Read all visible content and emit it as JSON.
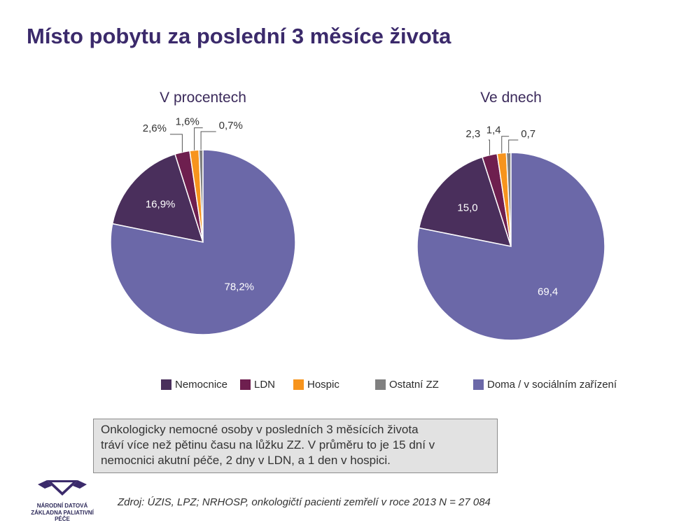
{
  "page": {
    "title": "Místo pobytu za poslední 3 měsíce života"
  },
  "colors": {
    "Nemocnice": "#4a2f5c",
    "LDN": "#6e1f4f",
    "Hospic": "#f7941d",
    "Ostatní ZZ": "#808080",
    "Doma / v sociálním zařízení": "#6b68a8"
  },
  "chart_data": [
    {
      "type": "pie",
      "title": "V procentech",
      "categories": [
        "Nemocnice",
        "LDN",
        "Hospic",
        "Ostatní ZZ",
        "Doma / v sociálním zařízení"
      ],
      "values": [
        16.9,
        2.6,
        1.6,
        0.7,
        78.2
      ],
      "labels": [
        "16,9%",
        "2,6%",
        "1,6%",
        "0,7%",
        "78,2%"
      ]
    },
    {
      "type": "pie",
      "title": "Ve dnech",
      "categories": [
        "Nemocnice",
        "LDN",
        "Hospic",
        "Ostatní ZZ",
        "Doma / v sociálním zařízení"
      ],
      "values": [
        15.0,
        2.3,
        1.4,
        0.7,
        69.4
      ],
      "labels": [
        "15,0",
        "2,3",
        "1,4",
        "0,7",
        "69,4"
      ]
    }
  ],
  "legend": [
    "Nemocnice",
    "LDN",
    "Hospic",
    "Ostatní ZZ",
    "Doma / v sociálním zařízení"
  ],
  "note": {
    "line1": "Onkologicky nemocné osoby v posledních 3 měsících života",
    "line2": "tráví více než pětinu času na lůžku ZZ. V průměru to je 15 dní v",
    "line3": "nemocnici akutní péče, 2 dny v LDN, a 1 den v hospici."
  },
  "source": "Zdroj: ÚZIS, LPZ; NRHOSP, onkologičtí pacienti zemřelí v roce 2013 N = 27 084",
  "logo": {
    "line1": "NÁRODNÍ DATOVÁ",
    "line2": "ZÁKLADNA PALIATIVNÍ PÉČE"
  }
}
